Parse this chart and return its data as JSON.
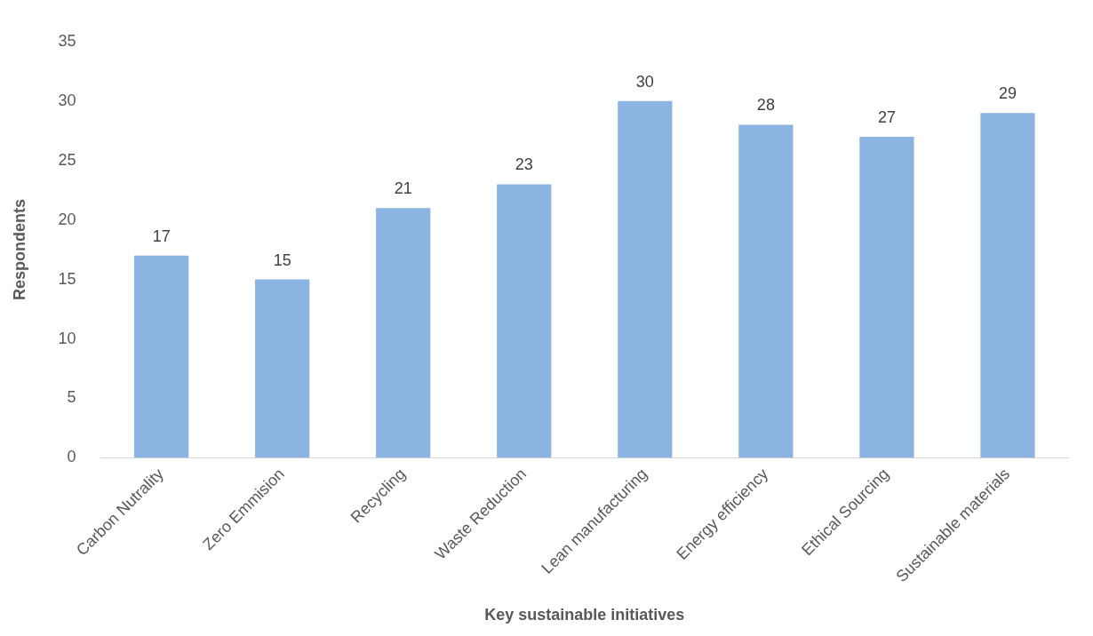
{
  "chart_data": {
    "type": "bar",
    "xlabel": "Key sustainable initiatives",
    "ylabel": "Respondents",
    "categories": [
      "Carbon Nutrality",
      "Zero Emmision",
      "Recycling",
      "Waste Reduction",
      "Lean manufacturing",
      "Energy efficiency",
      "Ethical Sourcing",
      "Sustainable materials"
    ],
    "values": [
      17,
      15,
      21,
      23,
      30,
      28,
      27,
      29
    ],
    "color": "#8cb4e2",
    "ylim": [
      0,
      35
    ],
    "yticks": [
      0,
      5,
      10,
      15,
      20,
      25,
      30,
      35
    ],
    "grid": false,
    "legend": false,
    "data_labels": true
  }
}
